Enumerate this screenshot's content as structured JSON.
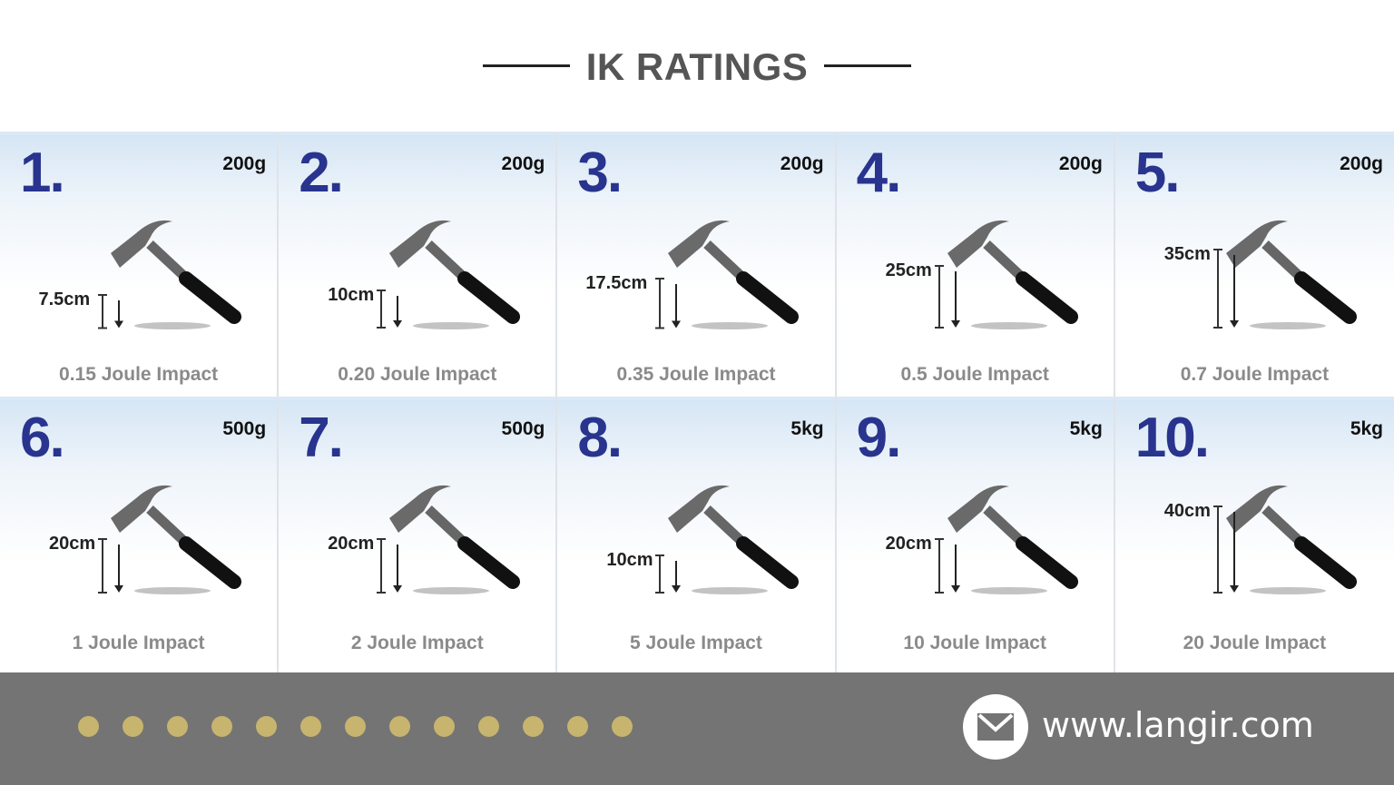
{
  "header": {
    "title": "IK RATINGS"
  },
  "ratings": [
    {
      "number": "1.",
      "weight": "200g",
      "drop": "7.5cm",
      "drop_cm": 7.5,
      "impact": "0.15 Joule Impact"
    },
    {
      "number": "2.",
      "weight": "200g",
      "drop": "10cm",
      "drop_cm": 10,
      "impact": "0.20 Joule Impact"
    },
    {
      "number": "3.",
      "weight": "200g",
      "drop": "17.5cm",
      "drop_cm": 17.5,
      "impact": "0.35 Joule Impact"
    },
    {
      "number": "4.",
      "weight": "200g",
      "drop": "25cm",
      "drop_cm": 25,
      "impact": "0.5 Joule Impact"
    },
    {
      "number": "5.",
      "weight": "200g",
      "drop": "35cm",
      "drop_cm": 35,
      "impact": "0.7 Joule Impact"
    },
    {
      "number": "6.",
      "weight": "500g",
      "drop": "20cm",
      "drop_cm": 20,
      "impact": "1 Joule Impact"
    },
    {
      "number": "7.",
      "weight": "500g",
      "drop": "20cm",
      "drop_cm": 20,
      "impact": "2 Joule Impact"
    },
    {
      "number": "8.",
      "weight": "5kg",
      "drop": "10cm",
      "drop_cm": 10,
      "impact": "5 Joule Impact"
    },
    {
      "number": "9.",
      "weight": "5kg",
      "drop": "20cm",
      "drop_cm": 20,
      "impact": "10 Joule Impact"
    },
    {
      "number": "10.",
      "weight": "5kg",
      "drop": "40cm",
      "drop_cm": 40,
      "impact": "20 Joule Impact"
    }
  ],
  "footer": {
    "url": "www.langir.com",
    "icon": "envelope-icon",
    "dot_count": 13,
    "dot_color": "#c7b46e"
  },
  "colors": {
    "number": "#28348e",
    "footer_bg": "#747474"
  }
}
